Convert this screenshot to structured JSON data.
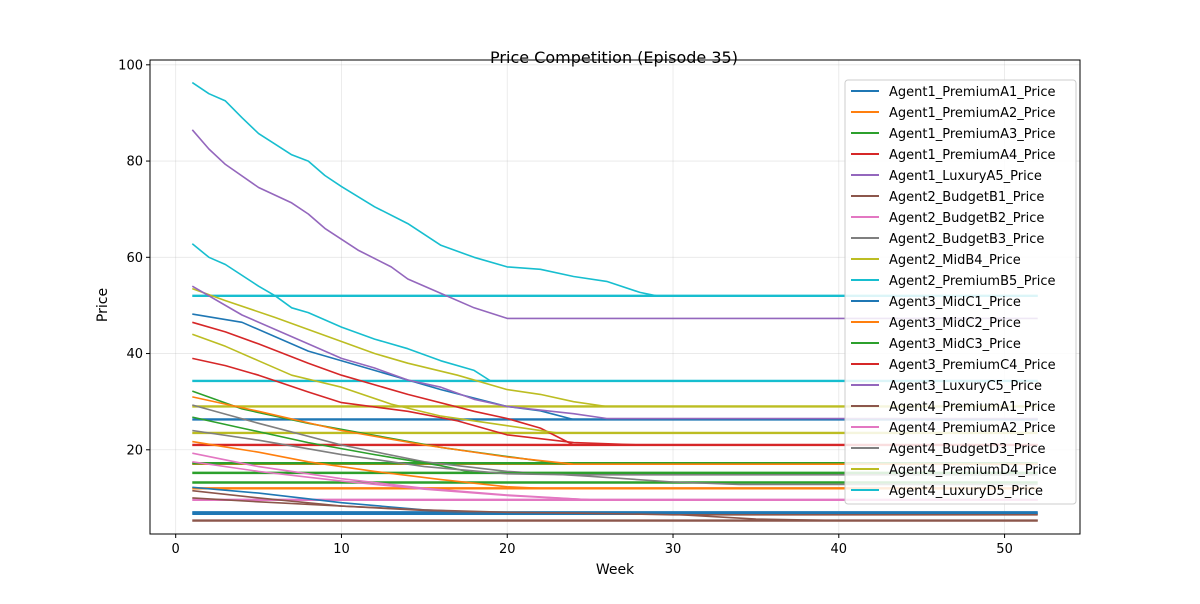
{
  "chart_data": {
    "type": "line",
    "title": "Price Competition (Episode 35)",
    "xlabel": "Week",
    "ylabel": "Price",
    "xlim": [
      -1.55,
      54.55
    ],
    "ylim": [
      2.5,
      101
    ],
    "xticks": [
      0,
      10,
      20,
      30,
      40,
      50
    ],
    "yticks": [
      20,
      40,
      60,
      80,
      100
    ],
    "grid": true,
    "legend_position": "upper right",
    "series": [
      {
        "name": "Agent1_PremiumA1_Price",
        "color": "#1f77b4",
        "points": [
          [
            1,
            48.2
          ],
          [
            4,
            46.5
          ],
          [
            8,
            40.5
          ],
          [
            12,
            36.5
          ],
          [
            16,
            32.5
          ],
          [
            20,
            29
          ],
          [
            22,
            28.1
          ],
          [
            24,
            26.3
          ],
          [
            52,
            26.3
          ]
        ]
      },
      {
        "name": "Agent1_PremiumA2_Price",
        "color": "#ff7f0e",
        "points": [
          [
            1,
            21.7
          ],
          [
            3,
            20.6
          ],
          [
            5,
            19.5
          ],
          [
            8,
            17.5
          ],
          [
            12,
            15.5
          ],
          [
            16,
            13.8
          ],
          [
            20,
            12.3
          ],
          [
            22,
            12
          ],
          [
            52,
            12
          ]
        ]
      },
      {
        "name": "Agent1_PremiumA3_Price",
        "color": "#2ca02c",
        "points": [
          [
            1,
            32.2
          ],
          [
            4,
            28.5
          ],
          [
            8,
            25.5
          ],
          [
            12,
            23
          ],
          [
            16,
            20.5
          ],
          [
            20,
            18.6
          ],
          [
            23,
            17.2
          ],
          [
            52,
            17.2
          ]
        ]
      },
      {
        "name": "Agent1_PremiumA4_Price",
        "color": "#d62728",
        "points": [
          [
            1,
            46.5
          ],
          [
            3,
            44.5
          ],
          [
            5,
            42
          ],
          [
            8,
            38
          ],
          [
            10,
            35.5
          ],
          [
            14,
            31.5
          ],
          [
            18,
            28
          ],
          [
            20,
            26.5
          ],
          [
            22,
            24.5
          ],
          [
            24,
            21
          ],
          [
            52,
            21
          ]
        ]
      },
      {
        "name": "Agent1_LuxuryA5_Price",
        "color": "#9467bd",
        "points": [
          [
            1,
            86.5
          ],
          [
            2,
            82.5
          ],
          [
            3,
            79.3
          ],
          [
            5,
            74.5
          ],
          [
            7,
            71.3
          ],
          [
            8,
            69
          ],
          [
            9,
            66
          ],
          [
            11,
            61.5
          ],
          [
            13,
            58
          ],
          [
            14,
            55.5
          ],
          [
            16,
            52.5
          ],
          [
            18,
            49.5
          ],
          [
            20,
            47.3
          ],
          [
            52,
            47.3
          ]
        ]
      },
      {
        "name": "Agent2_BudgetB1_Price",
        "color": "#8c564b",
        "points": [
          [
            1,
            11.5
          ],
          [
            5,
            10
          ],
          [
            10,
            8.3
          ],
          [
            15,
            7.4
          ],
          [
            18,
            7
          ],
          [
            25,
            6.8
          ],
          [
            30,
            6.6
          ],
          [
            35,
            5.6
          ],
          [
            40,
            5.3
          ],
          [
            52,
            5.3
          ]
        ]
      },
      {
        "name": "Agent2_BudgetB2_Price",
        "color": "#e377c2",
        "points": [
          [
            1,
            19.3
          ],
          [
            5,
            16.5
          ],
          [
            10,
            14
          ],
          [
            15,
            12
          ],
          [
            20,
            10.6
          ],
          [
            25,
            9.6
          ],
          [
            52,
            9.6
          ]
        ]
      },
      {
        "name": "Agent2_BudgetB3_Price",
        "color": "#7f7f7f",
        "points": [
          [
            1,
            29.3
          ],
          [
            5,
            25.5
          ],
          [
            10,
            21
          ],
          [
            15,
            17.5
          ],
          [
            20,
            15.5
          ],
          [
            25,
            14.5
          ],
          [
            30,
            13.3
          ],
          [
            34,
            12.8
          ],
          [
            52,
            12.8
          ]
        ]
      },
      {
        "name": "Agent2_MidB4_Price",
        "color": "#bcbd22",
        "points": [
          [
            1,
            53.5
          ],
          [
            3,
            51
          ],
          [
            6,
            47.5
          ],
          [
            8,
            45
          ],
          [
            10,
            42.5
          ],
          [
            12,
            40
          ],
          [
            14,
            38
          ],
          [
            17,
            35.5
          ],
          [
            20,
            32.5
          ],
          [
            22,
            31.5
          ],
          [
            24,
            30
          ],
          [
            26,
            29
          ],
          [
            52,
            29
          ]
        ]
      },
      {
        "name": "Agent2_PremiumB5_Price",
        "color": "#17becf",
        "points": [
          [
            1,
            96.3
          ],
          [
            2,
            94
          ],
          [
            3,
            92.5
          ],
          [
            4,
            89
          ],
          [
            5,
            85.7
          ],
          [
            6,
            83.5
          ],
          [
            7,
            81.3
          ],
          [
            8,
            80
          ],
          [
            9,
            77
          ],
          [
            10,
            74.7
          ],
          [
            12,
            70.5
          ],
          [
            14,
            67
          ],
          [
            16,
            62.5
          ],
          [
            18,
            60
          ],
          [
            20,
            58
          ],
          [
            22,
            57.5
          ],
          [
            24,
            56
          ],
          [
            26,
            55
          ],
          [
            28,
            52.7
          ],
          [
            29,
            52
          ],
          [
            52,
            52
          ]
        ]
      },
      {
        "name": "Agent3_MidC1_Price",
        "color": "#1f77b4",
        "points": [
          [
            1,
            12.2
          ],
          [
            5,
            11
          ],
          [
            10,
            9
          ],
          [
            15,
            7.5
          ],
          [
            20,
            6.8
          ],
          [
            52,
            6.8
          ]
        ]
      },
      {
        "name": "Agent3_MidC2_Price",
        "color": "#ff7f0e",
        "points": [
          [
            1,
            31
          ],
          [
            5,
            28
          ],
          [
            10,
            24
          ],
          [
            15,
            21
          ],
          [
            20,
            18.5
          ],
          [
            24,
            17
          ],
          [
            52,
            17
          ]
        ]
      },
      {
        "name": "Agent3_MidC3_Price",
        "color": "#2ca02c",
        "points": [
          [
            1,
            26.8
          ],
          [
            4,
            24.5
          ],
          [
            8,
            21.5
          ],
          [
            12,
            19
          ],
          [
            16,
            16.7
          ],
          [
            18,
            15.2
          ],
          [
            52,
            15.2
          ]
        ]
      },
      {
        "name": "Agent3_PremiumC4_Price",
        "color": "#d62728",
        "points": [
          [
            1,
            39
          ],
          [
            3,
            37.5
          ],
          [
            5,
            35.5
          ],
          [
            8,
            32
          ],
          [
            10,
            29.8
          ],
          [
            14,
            28
          ],
          [
            17,
            26
          ],
          [
            20,
            23.1
          ],
          [
            24,
            21.5
          ],
          [
            28,
            21
          ],
          [
            52,
            21
          ]
        ]
      },
      {
        "name": "Agent3_LuxuryC5_Price",
        "color": "#9467bd",
        "points": [
          [
            1,
            54
          ],
          [
            4,
            48
          ],
          [
            8,
            42
          ],
          [
            10,
            39
          ],
          [
            12,
            37
          ],
          [
            14,
            34.5
          ],
          [
            16,
            33
          ],
          [
            18,
            30.5
          ],
          [
            20,
            29
          ],
          [
            24,
            27.5
          ],
          [
            26,
            26.5
          ],
          [
            52,
            26.5
          ]
        ]
      },
      {
        "name": "Agent4_PremiumA1_Price",
        "color": "#8c564b",
        "points": [
          [
            1,
            10
          ],
          [
            5,
            9.2
          ],
          [
            10,
            8.3
          ],
          [
            15,
            7.5
          ],
          [
            20,
            7
          ],
          [
            25,
            6.8
          ],
          [
            30,
            6.5
          ],
          [
            52,
            6.5
          ]
        ]
      },
      {
        "name": "Agent4_PremiumA2_Price",
        "color": "#e377c2",
        "points": [
          [
            1,
            17.5
          ],
          [
            5,
            15.5
          ],
          [
            10,
            13.5
          ],
          [
            15,
            11.8
          ],
          [
            20,
            10.5
          ],
          [
            25,
            9.6
          ],
          [
            52,
            9.6
          ]
        ]
      },
      {
        "name": "Agent4_BudgetD3_Price",
        "color": "#7f7f7f",
        "points": [
          [
            1,
            24
          ],
          [
            5,
            22
          ],
          [
            10,
            19
          ],
          [
            15,
            16.5
          ],
          [
            20,
            15
          ],
          [
            24,
            14.8
          ],
          [
            52,
            14.8
          ]
        ]
      },
      {
        "name": "Agent4_PremiumD4_Price",
        "color": "#bcbd22",
        "points": [
          [
            1,
            44
          ],
          [
            3,
            41.5
          ],
          [
            5,
            38.5
          ],
          [
            7,
            35.5
          ],
          [
            10,
            33
          ],
          [
            13,
            29.5
          ],
          [
            16,
            27
          ],
          [
            20,
            25
          ],
          [
            23,
            23.5
          ],
          [
            52,
            23.5
          ]
        ]
      },
      {
        "name": "Agent4_LuxuryD5_Price",
        "color": "#17becf",
        "points": [
          [
            1,
            62.8
          ],
          [
            2,
            60
          ],
          [
            3,
            58.5
          ],
          [
            5,
            54
          ],
          [
            6,
            52
          ],
          [
            7,
            49.5
          ],
          [
            8,
            48.5
          ],
          [
            10,
            45.5
          ],
          [
            12,
            43
          ],
          [
            14,
            41
          ],
          [
            16,
            38.5
          ],
          [
            18,
            36.5
          ],
          [
            19,
            34.3
          ],
          [
            52,
            34.3
          ]
        ]
      }
    ],
    "flat_segments": [
      {
        "color": "#17becf",
        "x": [
          1,
          52
        ],
        "y": 52
      },
      {
        "color": "#17becf",
        "x": [
          1,
          52
        ],
        "y": 34.3
      },
      {
        "color": "#bcbd22",
        "x": [
          1,
          52
        ],
        "y": 29
      },
      {
        "color": "#1f77b4",
        "x": [
          1,
          52
        ],
        "y": 26.3
      },
      {
        "color": "#bcbd22",
        "x": [
          1,
          52
        ],
        "y": 23.5
      },
      {
        "color": "#d62728",
        "x": [
          1,
          52
        ],
        "y": 21
      },
      {
        "color": "#ff7f0e",
        "x": [
          1,
          52
        ],
        "y": 17.1
      },
      {
        "color": "#2ca02c",
        "x": [
          1,
          52
        ],
        "y": 17.2
      },
      {
        "color": "#2ca02c",
        "x": [
          1,
          52
        ],
        "y": 15.2
      },
      {
        "color": "#2ca02c",
        "x": [
          1,
          52
        ],
        "y": 13.2
      },
      {
        "color": "#ff7f0e",
        "x": [
          1,
          52
        ],
        "y": 12
      },
      {
        "color": "#e377c2",
        "x": [
          1,
          52
        ],
        "y": 9.6
      },
      {
        "color": "#1f77b4",
        "x": [
          1,
          52
        ],
        "y": 7
      },
      {
        "color": "#1f77b4",
        "x": [
          1,
          52
        ],
        "y": 6.7
      },
      {
        "color": "#8c564b",
        "x": [
          1,
          52
        ],
        "y": 5.3
      }
    ]
  }
}
